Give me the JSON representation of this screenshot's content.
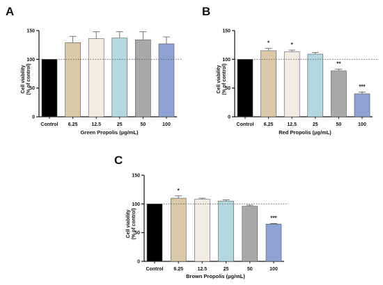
{
  "chart_data": [
    {
      "panel": "A",
      "type": "bar",
      "categories": [
        "Control",
        "6.25",
        "12.5",
        "25",
        "50",
        "100"
      ],
      "values": [
        100,
        129,
        136,
        137,
        134,
        127
      ],
      "errors": [
        0,
        11,
        12,
        11,
        14,
        12
      ],
      "significance": [
        "",
        "",
        "",
        "",
        "",
        ""
      ],
      "xlabel": "Green Propolis (µg/mL)",
      "ylabel": [
        "Cell viability",
        "(% of control)"
      ],
      "ylim": [
        0,
        150
      ],
      "yticks": [
        "0",
        "50",
        "100",
        "150"
      ],
      "reference_line": 100,
      "colors": [
        "#000000",
        "#d9c9a8",
        "#f1ede5",
        "#b4d8df",
        "#a9a9a9",
        "#8ea3d3"
      ]
    },
    {
      "panel": "B",
      "type": "bar",
      "categories": [
        "Control",
        "6.25",
        "12.5",
        "25",
        "50",
        "100"
      ],
      "values": [
        100,
        115,
        113,
        109,
        80,
        40
      ],
      "errors": [
        0,
        4,
        3,
        3,
        3,
        3
      ],
      "significance": [
        "",
        "*",
        "*",
        "",
        "**",
        "***"
      ],
      "xlabel": "Red Propolis (µg/mL)",
      "ylabel": [
        "Cell viability",
        "(% of control)"
      ],
      "ylim": [
        0,
        150
      ],
      "yticks": [
        "0",
        "50",
        "100",
        "150"
      ],
      "reference_line": 100,
      "colors": [
        "#000000",
        "#d9c9a8",
        "#f1ede5",
        "#b4d8df",
        "#a9a9a9",
        "#8ea3d3"
      ]
    },
    {
      "panel": "C",
      "type": "bar",
      "categories": [
        "Control",
        "6.25",
        "12.5",
        "25",
        "50",
        "100"
      ],
      "values": [
        100,
        110,
        108,
        105,
        96,
        65
      ],
      "errors": [
        0,
        4,
        2,
        2,
        2,
        1
      ],
      "significance": [
        "",
        "*",
        "",
        "",
        "",
        "***"
      ],
      "xlabel": "Brown Propolis (µg/mL)",
      "ylabel": [
        "Cell viability",
        "(% of control)"
      ],
      "ylim": [
        0,
        150
      ],
      "yticks": [
        "0",
        "50",
        "100",
        "150"
      ],
      "reference_line": 100,
      "colors": [
        "#000000",
        "#d9c9a8",
        "#f1ede5",
        "#b4d8df",
        "#a9a9a9",
        "#8ea3d3"
      ]
    }
  ]
}
